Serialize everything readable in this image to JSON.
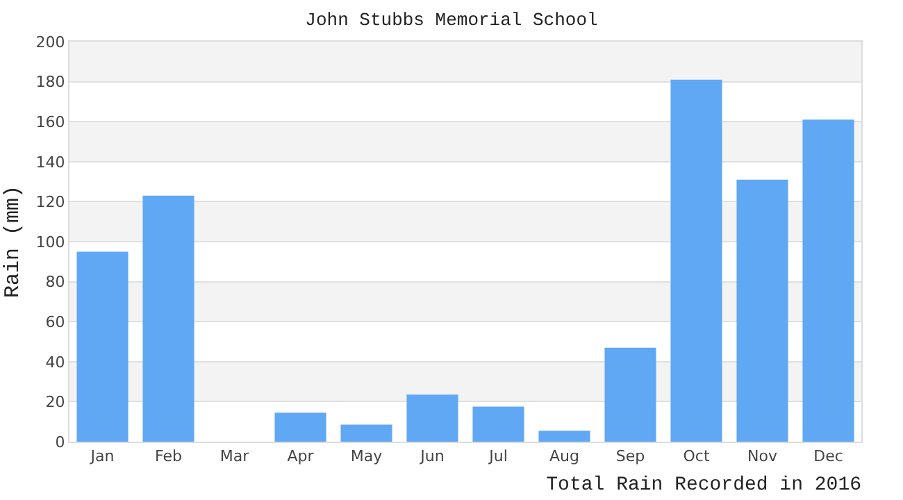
{
  "chart_data": {
    "type": "bar",
    "title": "John Stubbs Memorial School",
    "xlabel": "Total Rain Recorded in 2016",
    "ylabel": "Rain (mm)",
    "categories": [
      "Jan",
      "Feb",
      "Mar",
      "Apr",
      "May",
      "Jun",
      "Jul",
      "Aug",
      "Sep",
      "Oct",
      "Nov",
      "Dec"
    ],
    "values": [
      95,
      123,
      0,
      14.5,
      8.5,
      23.5,
      17.5,
      5.5,
      47,
      181,
      131,
      161
    ],
    "color": "#60a8f4",
    "ylim": [
      0,
      200
    ],
    "yticks": [
      0,
      20,
      40,
      60,
      80,
      100,
      120,
      140,
      160,
      180,
      200
    ],
    "grid": true
  }
}
